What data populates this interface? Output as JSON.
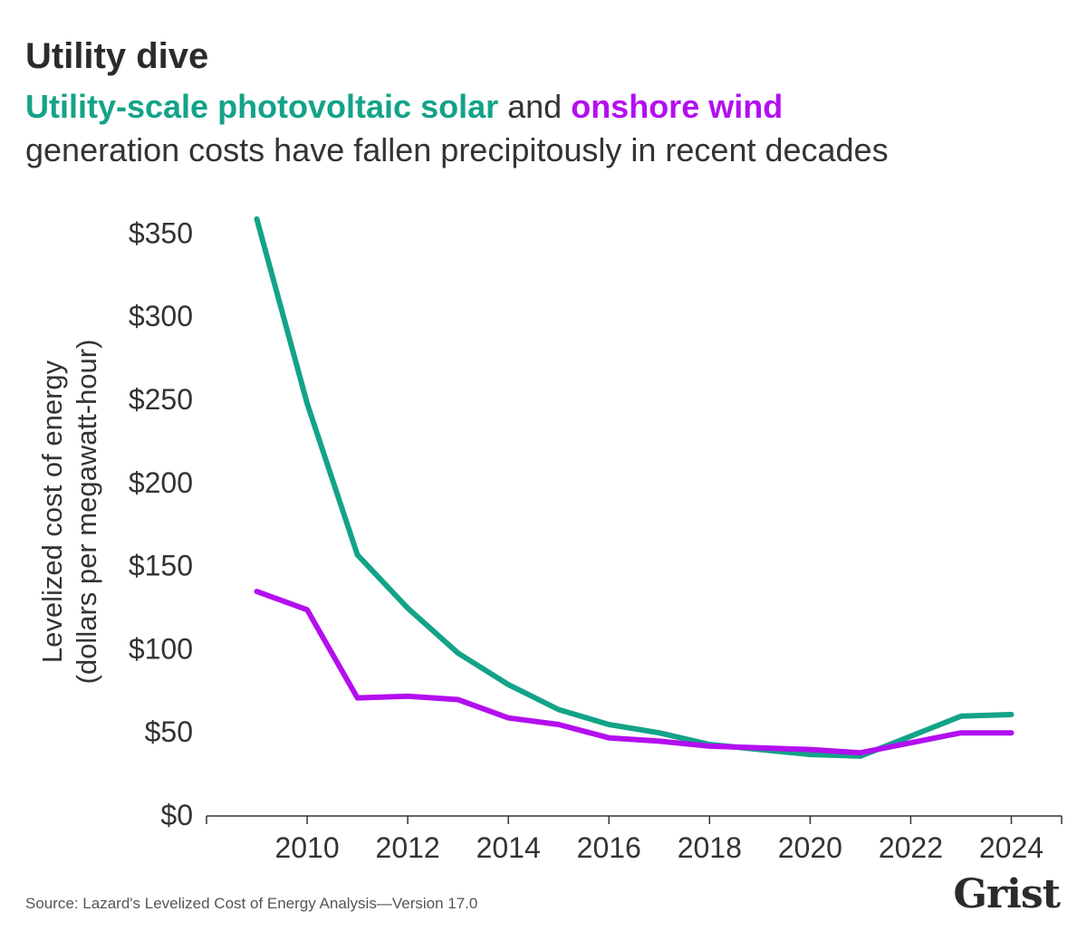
{
  "header": {
    "title": "Utility dive",
    "subtitle_solar": "Utility-scale photovoltaic solar",
    "subtitle_and": " and ",
    "subtitle_wind": "onshore wind",
    "subtitle_line2": "generation costs have fallen precipitously in recent decades"
  },
  "colors": {
    "solar": "#13a388",
    "wind": "#b30ff0",
    "axis": "#333333",
    "text": "#333333"
  },
  "chart_data": {
    "type": "line",
    "title": "Utility dive",
    "ylabel_line1": "Levelized cost of energy",
    "ylabel_line2": "(dollars per megawatt-hour)",
    "xlabel": "",
    "xlim": [
      2008,
      2025
    ],
    "ylim": [
      0,
      360
    ],
    "x_ticks": [
      2010,
      2012,
      2014,
      2016,
      2018,
      2020,
      2022,
      2024
    ],
    "y_ticks": [
      0,
      50,
      100,
      150,
      200,
      250,
      300,
      350
    ],
    "y_tick_labels": [
      "$0",
      "$50",
      "$100",
      "$150",
      "$200",
      "$250",
      "$300",
      "$350"
    ],
    "grid": false,
    "x": [
      2009,
      2010,
      2011,
      2012,
      2013,
      2014,
      2015,
      2016,
      2017,
      2018,
      2019,
      2020,
      2021,
      2022,
      2023,
      2024
    ],
    "series": [
      {
        "name": "Utility-scale photovoltaic solar",
        "color": "#13a388",
        "values": [
          359,
          248,
          157,
          125,
          98,
          79,
          64,
          55,
          50,
          43,
          40,
          37,
          36,
          48,
          60,
          61
        ]
      },
      {
        "name": "onshore wind",
        "color": "#b30ff0",
        "values": [
          135,
          124,
          71,
          72,
          70,
          59,
          55,
          47,
          45,
          42,
          41,
          40,
          38,
          44,
          50,
          50
        ]
      }
    ]
  },
  "footer": {
    "source": "Source: Lazard's Levelized Cost of Energy Analysis—Version 17.0",
    "logo": "Grist"
  }
}
